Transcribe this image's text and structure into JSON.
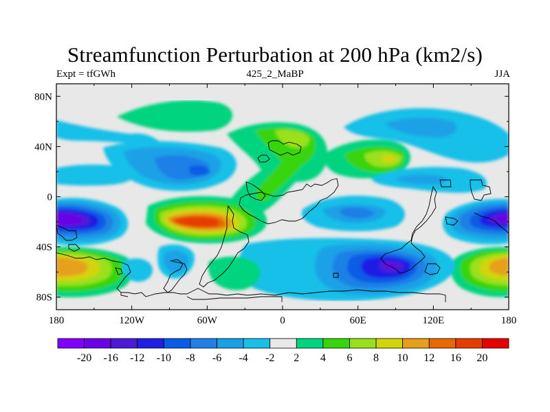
{
  "chart_data": {
    "type": "heatmap",
    "title": "Streamfunction Perturbation at 200 hPa (km2/s)",
    "left_string": "Expt = tfGWh",
    "center_string": "425_2_MaBP",
    "right_string": "JJA",
    "x_ticks": [
      {
        "lon": -180,
        "label": "180"
      },
      {
        "lon": -120,
        "label": "120W"
      },
      {
        "lon": -60,
        "label": "60W"
      },
      {
        "lon": 0,
        "label": "0"
      },
      {
        "lon": 60,
        "label": "60E"
      },
      {
        "lon": 120,
        "label": "120E"
      },
      {
        "lon": 180,
        "label": "180"
      }
    ],
    "y_ticks": [
      {
        "lat": 80,
        "label": "80N"
      },
      {
        "lat": 40,
        "label": "40N"
      },
      {
        "lat": 0,
        "label": "0"
      },
      {
        "lat": -40,
        "label": "40S"
      },
      {
        "lat": -80,
        "label": "80S"
      }
    ],
    "xlim": [
      -180,
      180
    ],
    "ylim": [
      -90,
      90
    ],
    "colorbar": {
      "levels": [
        "-20",
        "-16",
        "-12",
        "-10",
        "-8",
        "-6",
        "-4",
        "-2",
        "2",
        "4",
        "6",
        "8",
        "10",
        "12",
        "16",
        "20"
      ],
      "colors": [
        "#7f00ff",
        "#6a00e6",
        "#4d1ad9",
        "#1f1fe6",
        "#0a5ce6",
        "#1f80e6",
        "#1aa0e6",
        "#18c0e8",
        "#e8e8e8",
        "#00d47f",
        "#38d40c",
        "#9ae01a",
        "#d4d40c",
        "#e6a01a",
        "#e66a00",
        "#e63c00",
        "#e60000"
      ]
    },
    "features": [
      {
        "name": "north-pacific-high",
        "lon": -150,
        "lat": 48,
        "value": 4
      },
      {
        "name": "tropical-central-pacific-low",
        "lon": -150,
        "lat": 15,
        "value": -4
      },
      {
        "name": "atlantic-low",
        "lon": -75,
        "lat": 30,
        "value": -9
      },
      {
        "name": "north-atlantic-high",
        "lon": -8,
        "lat": 55,
        "value": 5
      },
      {
        "name": "europe-high",
        "lon": 15,
        "lat": 52,
        "value": 6
      },
      {
        "name": "siberia-low",
        "lon": 80,
        "lat": 62,
        "value": -5
      },
      {
        "name": "asia-high",
        "lon": 70,
        "lat": 35,
        "value": 8
      },
      {
        "name": "east-asia-low",
        "lon": 115,
        "lat": 20,
        "value": -5
      },
      {
        "name": "south-atlantic-high",
        "lon": -60,
        "lat": -25,
        "value": 18
      },
      {
        "name": "africa-high",
        "lon": -10,
        "lat": -30,
        "value": 6
      },
      {
        "name": "southeast-pacific-low",
        "lon": -178,
        "lat": -25,
        "value": -20
      },
      {
        "name": "far-west-pacific-low",
        "lon": 175,
        "lat": -25,
        "value": -20
      },
      {
        "name": "indian-ocean-low",
        "lon": 85,
        "lat": -25,
        "value": -6
      },
      {
        "name": "south-indian-low",
        "lon": 90,
        "lat": -60,
        "value": -14
      },
      {
        "name": "southern-ocean-high-west",
        "lon": -170,
        "lat": -60,
        "value": 12
      },
      {
        "name": "southern-ocean-high-east",
        "lon": 170,
        "lat": -60,
        "value": 12
      },
      {
        "name": "drake-passage-low",
        "lon": -95,
        "lat": -60,
        "value": -6
      },
      {
        "name": "south-atlantic-mid-high",
        "lon": -25,
        "lat": -60,
        "value": 5
      }
    ]
  }
}
